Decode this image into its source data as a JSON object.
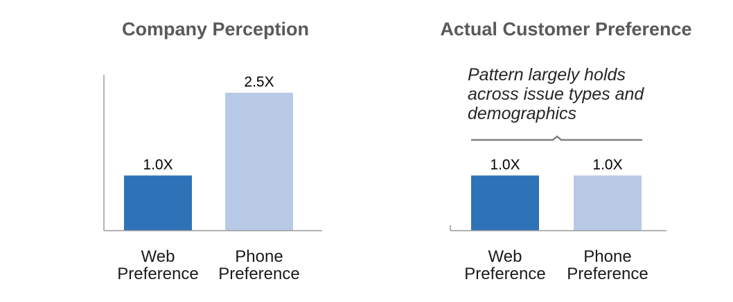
{
  "chart_data": [
    {
      "type": "bar",
      "title": "Company Perception",
      "categories": [
        "Web Preference",
        "Phone Preference"
      ],
      "category_lines": [
        [
          "Web",
          "Preference"
        ],
        [
          "Phone",
          "Preference"
        ]
      ],
      "values": [
        1.0,
        2.5
      ],
      "data_labels": [
        "1.0X",
        "2.5X"
      ],
      "colors": [
        "#2e73b8",
        "#b8c9e6"
      ],
      "ylim": [
        0,
        2.75
      ],
      "xlabel": "",
      "ylabel": "",
      "grid": false,
      "legend": "none"
    },
    {
      "type": "bar",
      "title": "Actual Customer Preference",
      "categories": [
        "Web Preference",
        "Phone Preference"
      ],
      "category_lines": [
        [
          "Web",
          "Preference"
        ],
        [
          "Phone",
          "Preference"
        ]
      ],
      "values": [
        1.0,
        1.0
      ],
      "data_labels": [
        "1.0X",
        "1.0X"
      ],
      "colors": [
        "#2e73b8",
        "#b8c9e6"
      ],
      "ylim": [
        0,
        2.75
      ],
      "xlabel": "",
      "ylabel": "",
      "grid": false,
      "legend": "none",
      "annotation": {
        "lines": [
          "Pattern largely holds",
          "across issue types and",
          "demographics"
        ]
      }
    }
  ]
}
